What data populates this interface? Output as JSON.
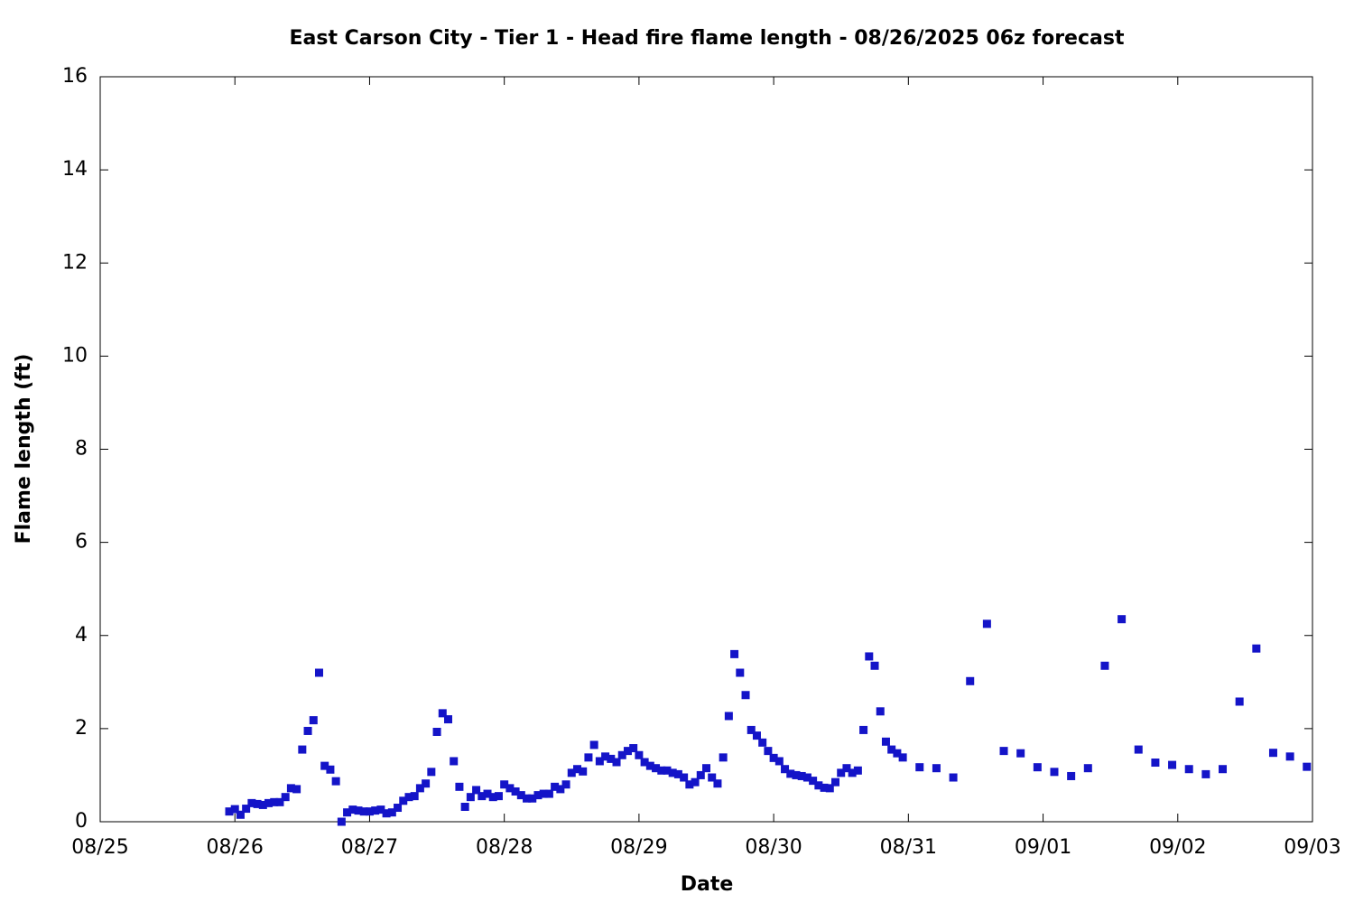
{
  "chart_data": {
    "type": "scatter",
    "title": "East Carson City - Tier 1 - Head fire flame length - 08/26/2025 06z forecast",
    "x_label": "Date",
    "y_label": "Flame length (ft)",
    "color": "#1414c8",
    "xlim": [
      0,
      216
    ],
    "xticks": [
      {
        "value": 0,
        "label": "08/25"
      },
      {
        "value": 24,
        "label": "08/26"
      },
      {
        "value": 48,
        "label": "08/27"
      },
      {
        "value": 72,
        "label": "08/28"
      },
      {
        "value": 96,
        "label": "08/29"
      },
      {
        "value": 120,
        "label": "08/30"
      },
      {
        "value": 144,
        "label": "08/31"
      },
      {
        "value": 168,
        "label": "09/01"
      },
      {
        "value": 192,
        "label": "09/02"
      },
      {
        "value": 216,
        "label": "09/03"
      }
    ],
    "ylim": [
      0,
      16
    ],
    "yticks": [
      0,
      2,
      4,
      6,
      8,
      10,
      12,
      14,
      16
    ],
    "x": [
      23,
      24,
      25,
      26,
      27,
      28,
      29,
      30,
      31,
      32,
      33,
      34,
      35,
      36,
      37,
      38,
      39,
      40,
      41,
      42,
      43,
      44,
      45,
      46,
      47,
      48,
      49,
      50,
      51,
      52,
      53,
      54,
      55,
      56,
      57,
      58,
      59,
      60,
      61,
      62,
      63,
      64,
      65,
      66,
      67,
      68,
      69,
      70,
      71,
      72,
      73,
      74,
      75,
      76,
      77,
      78,
      79,
      80,
      81,
      82,
      83,
      84,
      85,
      86,
      87,
      88,
      89,
      90,
      91,
      92,
      93,
      94,
      95,
      96,
      97,
      98,
      99,
      100,
      101,
      102,
      103,
      104,
      105,
      106,
      107,
      108,
      109,
      110,
      111,
      112,
      113,
      114,
      115,
      116,
      117,
      118,
      119,
      120,
      121,
      122,
      123,
      124,
      125,
      126,
      127,
      128,
      129,
      130,
      131,
      132,
      133,
      134,
      135,
      136,
      137,
      138,
      139,
      140,
      141,
      142,
      143,
      146,
      149,
      152,
      155,
      158,
      161,
      164,
      167,
      170,
      173,
      176,
      179,
      182,
      185,
      188,
      191,
      194,
      197,
      200,
      203,
      206,
      209,
      212,
      215
    ],
    "values": [
      0.22,
      0.27,
      0.15,
      0.28,
      0.4,
      0.38,
      0.36,
      0.4,
      0.42,
      0.42,
      0.53,
      0.72,
      0.7,
      1.55,
      1.95,
      2.18,
      3.2,
      1.2,
      1.12,
      0.87,
      0.0,
      0.2,
      0.26,
      0.24,
      0.22,
      0.22,
      0.24,
      0.26,
      0.18,
      0.2,
      0.3,
      0.45,
      0.53,
      0.55,
      0.72,
      0.82,
      1.07,
      1.93,
      2.33,
      2.2,
      1.3,
      0.75,
      0.32,
      0.53,
      0.68,
      0.55,
      0.6,
      0.53,
      0.55,
      0.8,
      0.72,
      0.65,
      0.57,
      0.5,
      0.5,
      0.57,
      0.6,
      0.6,
      0.75,
      0.7,
      0.8,
      1.05,
      1.13,
      1.08,
      1.38,
      1.65,
      1.3,
      1.4,
      1.35,
      1.28,
      1.43,
      1.52,
      1.58,
      1.43,
      1.28,
      1.2,
      1.15,
      1.1,
      1.1,
      1.05,
      1.02,
      0.95,
      0.8,
      0.85,
      1.0,
      1.15,
      0.95,
      0.82,
      1.38,
      2.27,
      3.6,
      3.2,
      2.72,
      1.97,
      1.85,
      1.7,
      1.52,
      1.37,
      1.3,
      1.13,
      1.03,
      1.0,
      0.98,
      0.95,
      0.88,
      0.78,
      0.73,
      0.72,
      0.85,
      1.05,
      1.15,
      1.05,
      1.1,
      1.97,
      3.55,
      3.35,
      2.37,
      1.72,
      1.55,
      1.47,
      1.38,
      1.17,
      1.15,
      0.95,
      3.02,
      4.25,
      1.52,
      1.47,
      1.17,
      1.07,
      0.98,
      1.15,
      3.35,
      4.35,
      1.55,
      1.27,
      1.22,
      1.13,
      1.02,
      1.13,
      2.58,
      3.72,
      1.48,
      1.4,
      1.18
    ]
  }
}
